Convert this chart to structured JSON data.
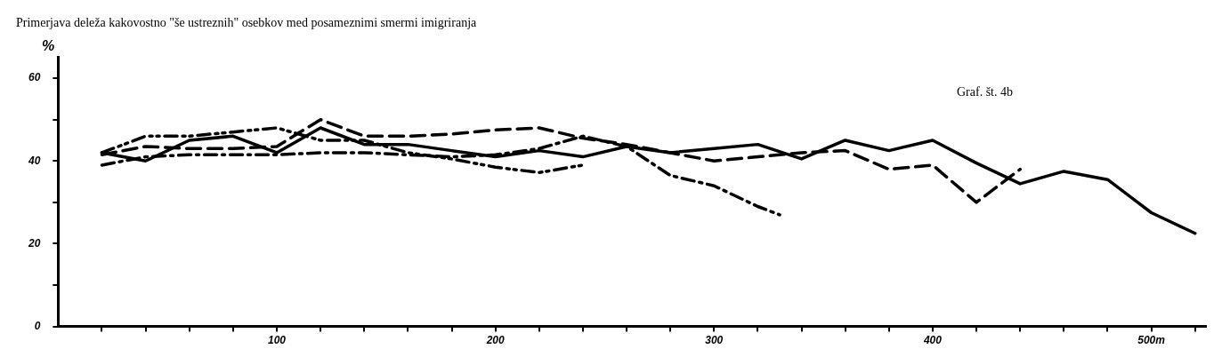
{
  "chart_data": {
    "type": "line",
    "title": "Primerjava deleža kakovostno \"še ustreznih\" osebkov med posameznimi smermi imigriranja",
    "ylabel": "%",
    "annotations": [
      "Graf. št. 4b"
    ],
    "xlim": [
      0,
      525
    ],
    "ylim": [
      0,
      65
    ],
    "xticks": [
      {
        "value": 20,
        "label": null
      },
      {
        "value": 40,
        "label": null
      },
      {
        "value": 60,
        "label": null
      },
      {
        "value": 80,
        "label": null
      },
      100,
      {
        "value": 120,
        "label": null
      },
      {
        "value": 140,
        "label": null
      },
      {
        "value": 160,
        "label": null
      },
      {
        "value": 180,
        "label": null
      },
      200,
      {
        "value": 220,
        "label": null
      },
      {
        "value": 240,
        "label": null
      },
      {
        "value": 260,
        "label": null
      },
      {
        "value": 280,
        "label": null
      },
      300,
      {
        "value": 320,
        "label": null
      },
      {
        "value": 340,
        "label": null
      },
      {
        "value": 360,
        "label": null
      },
      {
        "value": 380,
        "label": null
      },
      400,
      {
        "value": 420,
        "label": null
      },
      {
        "value": 440,
        "label": null
      },
      {
        "value": 460,
        "label": null
      },
      {
        "value": 480,
        "label": null
      },
      {
        "value": 500,
        "label": "500m"
      },
      {
        "value": 520,
        "label": null
      }
    ],
    "yticks": [
      0,
      {
        "value": 10,
        "label": null
      },
      20,
      {
        "value": 30,
        "label": null
      },
      40,
      {
        "value": 50,
        "label": null
      },
      60
    ],
    "grid": false,
    "legend": false,
    "marker": "none",
    "series": [
      {
        "color": "#000000",
        "line_style": "solid",
        "x": [
          20,
          40,
          60,
          80,
          100,
          120,
          140,
          160,
          180,
          200,
          220,
          240,
          260,
          280,
          300,
          320,
          340,
          360,
          380,
          400,
          420,
          440,
          460,
          480,
          500,
          520
        ],
        "values": [
          42,
          40,
          45,
          46,
          42,
          48,
          44,
          44,
          42.5,
          41,
          42.5,
          41,
          43.5,
          42,
          43,
          44,
          40.5,
          45,
          42.5,
          45,
          39.5,
          34.5,
          37.5,
          35.5,
          27.5,
          22.5
        ]
      },
      {
        "color": "#000000",
        "line_style": "dashed",
        "x": [
          20,
          40,
          60,
          80,
          100,
          120,
          140,
          160,
          180,
          200,
          220,
          240,
          260,
          280,
          300,
          320,
          340,
          360,
          380,
          400,
          420,
          440
        ],
        "values": [
          41.5,
          43.5,
          43,
          43,
          43.5,
          50,
          46,
          46,
          46.5,
          47.5,
          48,
          45.5,
          44,
          42,
          40,
          41,
          42,
          42.5,
          38,
          39,
          30,
          38
        ]
      },
      {
        "color": "#000000",
        "line_style": "dashdot",
        "x": [
          20,
          40,
          60,
          80,
          100,
          120,
          140,
          160,
          180,
          200,
          220,
          240,
          260,
          280,
          300,
          320,
          330
        ],
        "values": [
          39,
          41,
          41.5,
          41.5,
          41.5,
          42,
          42,
          41.5,
          41,
          41.5,
          43,
          46,
          43.5,
          36.5,
          34,
          29,
          27
        ]
      },
      {
        "color": "#000000",
        "line_style": "dashdotdot",
        "x": [
          20,
          40,
          60,
          80,
          100,
          120,
          140,
          160,
          180,
          200,
          220,
          240
        ],
        "values": [
          42,
          46,
          46,
          47,
          48,
          45,
          45,
          42,
          40.5,
          38.5,
          37.2,
          39
        ]
      }
    ]
  }
}
